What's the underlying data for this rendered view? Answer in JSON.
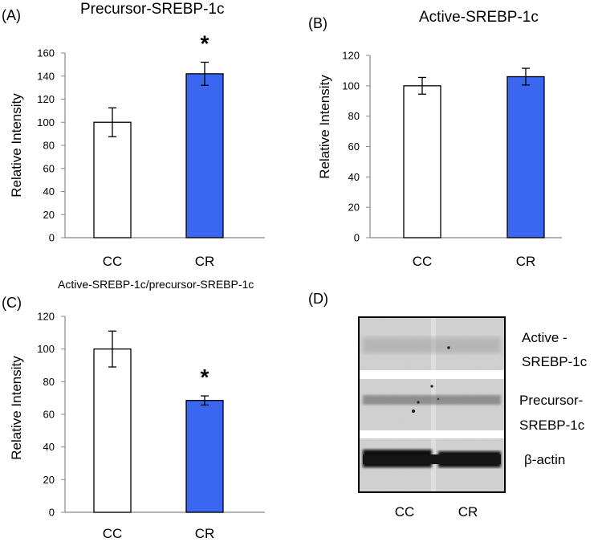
{
  "colors": {
    "cc_fill": "#ffffff",
    "cr_fill": "#3a66f0",
    "axis": "#888888",
    "bar_stroke": "#000000"
  },
  "chart_data": [
    {
      "panel": "(A)",
      "type": "bar",
      "title": "Precursor-SREBP-1c",
      "ylabel": "Relative Intensity",
      "xlabel": "",
      "categories": [
        "CC",
        "CR"
      ],
      "values": [
        100,
        142
      ],
      "errors": [
        12.5,
        10
      ],
      "ylim": [
        0,
        160
      ],
      "yticks": [
        0,
        20,
        40,
        60,
        80,
        100,
        120,
        140,
        160
      ],
      "significance": [
        "",
        "*"
      ]
    },
    {
      "panel": "(B)",
      "type": "bar",
      "title": "Active-SREBP-1c",
      "ylabel": "Relative Intensity",
      "xlabel": "",
      "categories": [
        "CC",
        "CR"
      ],
      "values": [
        100,
        106
      ],
      "errors": [
        5.5,
        5.5
      ],
      "ylim": [
        0,
        120
      ],
      "yticks": [
        0,
        20,
        40,
        60,
        80,
        100,
        120
      ],
      "significance": [
        "",
        ""
      ]
    },
    {
      "panel": "(C)",
      "type": "bar",
      "title": "Active-SREBP-1c/precursor-SREBP-1c",
      "ylabel": "Relative Intensity",
      "xlabel": "",
      "categories": [
        "CC",
        "CR"
      ],
      "values": [
        100,
        68.5
      ],
      "errors": [
        11,
        2.8
      ],
      "ylim": [
        0,
        120
      ],
      "yticks": [
        0,
        20,
        40,
        60,
        80,
        100,
        120
      ],
      "significance": [
        "",
        "*"
      ]
    }
  ],
  "blot": {
    "panel": "(D)",
    "bands": [
      "Active -\nSREBP-1c",
      "Precursor-\nSREBP-1c",
      "β-actin"
    ],
    "lanes": [
      "CC",
      "CR"
    ]
  }
}
